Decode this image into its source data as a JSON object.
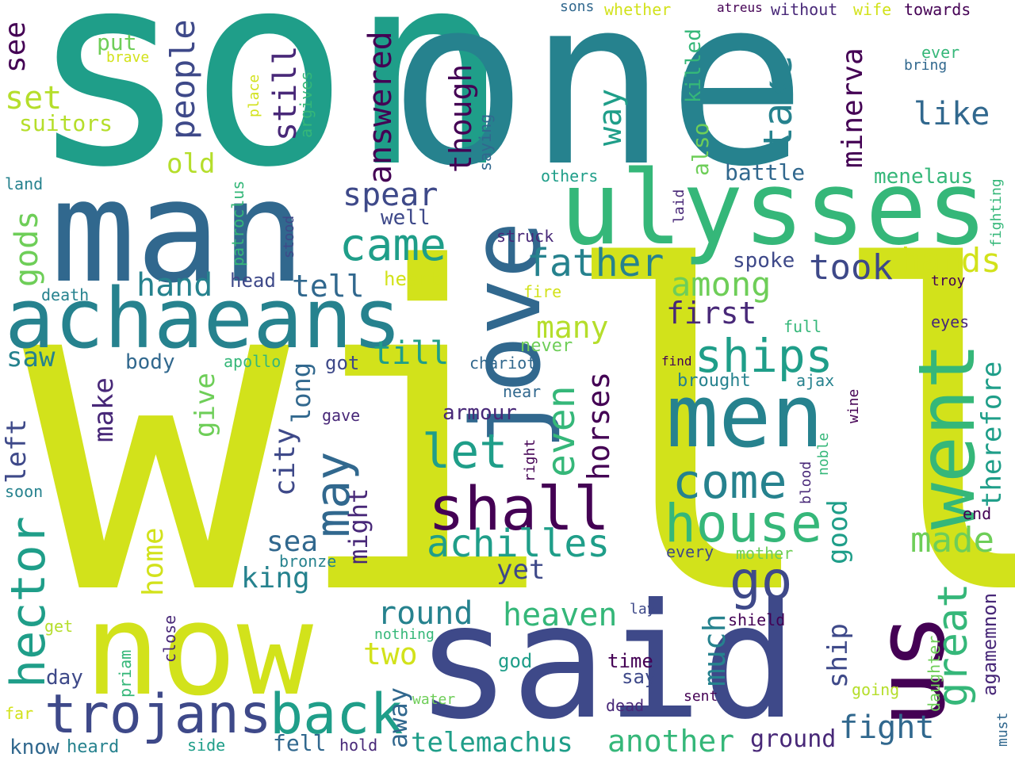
{
  "palette": {
    "background": "#ffffff",
    "c1": "#440154",
    "c2": "#482878",
    "c3": "#3e4989",
    "c4": "#31688e",
    "c5": "#26828e",
    "c6": "#1f9e89",
    "c7": "#35b779",
    "c8": "#6ece58",
    "c9": "#b5de2b",
    "c10": "#d2e21b"
  },
  "words": {
    "will": "will",
    "son": "son",
    "one": "one",
    "man": "man",
    "ulysses": "ulysses",
    "achaeans": "achaeans",
    "jove": "jove",
    "men": "men",
    "now": "now",
    "said": "said",
    "us": "us",
    "went": "went",
    "shall": "shall",
    "house": "house",
    "trojans": "trojans",
    "back": "back",
    "hector": "hector",
    "came": "came",
    "father": "father",
    "come": "come",
    "achilles": "achilles",
    "let": "let",
    "even": "even",
    "may": "may",
    "ships": "ships",
    "go": "go",
    "great": "great",
    "take": "take",
    "spear": "spear",
    "took": "took",
    "hands": "hands",
    "among": "among",
    "people": "people",
    "answered": "answered",
    "still": "still",
    "though": "though",
    "way": "way",
    "minerva": "minerva",
    "like": "like",
    "set": "set",
    "see": "see",
    "suitors": "suitors",
    "old": "old",
    "put": "put",
    "brave": "brave",
    "gods": "gods",
    "hand": "hand",
    "tell": "tell",
    "well": "well",
    "saw": "saw",
    "till": "till",
    "first": "first",
    "many": "many",
    "battle": "battle",
    "menelaus": "menelaus",
    "spoke": "spoke",
    "also": "also",
    "killed": "killed",
    "heart": "heart",
    "head": "head",
    "give": "give",
    "make": "make",
    "left": "left",
    "horses": "horses",
    "therefore": "therefore",
    "round": "round",
    "heaven": "heaven",
    "made": "made",
    "good": "good",
    "city": "city",
    "long": "long",
    "sea": "sea",
    "might": "might",
    "king": "king",
    "home": "home",
    "armour": "armour",
    "yet": "yet",
    "two": "two",
    "much": "much",
    "ship": "ship",
    "agamemnon": "agamemnon",
    "fight": "fight",
    "telemachus": "telemachus",
    "another": "another",
    "ground": "ground",
    "away": "away",
    "day": "day",
    "fell": "fell",
    "know": "know",
    "heard": "heard",
    "body": "body",
    "apollo": "apollo",
    "got": "got",
    "chariot": "chariot",
    "never": "never",
    "near": "near",
    "gave": "gave",
    "find": "find",
    "brought": "brought",
    "ajax": "ajax",
    "wine": "wine",
    "noble": "noble",
    "blood": "blood",
    "right": "right",
    "every": "every",
    "mother": "mother",
    "end": "end",
    "bronze": "bronze",
    "soon": "soon",
    "death": "death",
    "land": "land",
    "patroclus": "patroclus",
    "stood": "stood",
    "place": "place",
    "argives": "argives",
    "saying": "saying",
    "struck": "struck",
    "laid": "laid",
    "others": "others",
    "fighting": "fighting",
    "troy": "troy",
    "eyes": "eyes",
    "full": "full",
    "fire": "fire",
    "ever": "ever",
    "bring": "bring",
    "atreus": "atreus",
    "without": "without",
    "wife": "wife",
    "towards": "towards",
    "sons": "sons",
    "whether": "whether",
    "lay": "lay",
    "shield": "shield",
    "time": "time",
    "say": "say",
    "dead": "dead",
    "sent": "sent",
    "god": "god",
    "going": "going",
    "daughter": "daughter",
    "must": "must",
    "nothing": "nothing",
    "water": "water",
    "get": "get",
    "close": "close",
    "priam": "priam",
    "far": "far",
    "side": "side",
    "hold": "hold"
  }
}
